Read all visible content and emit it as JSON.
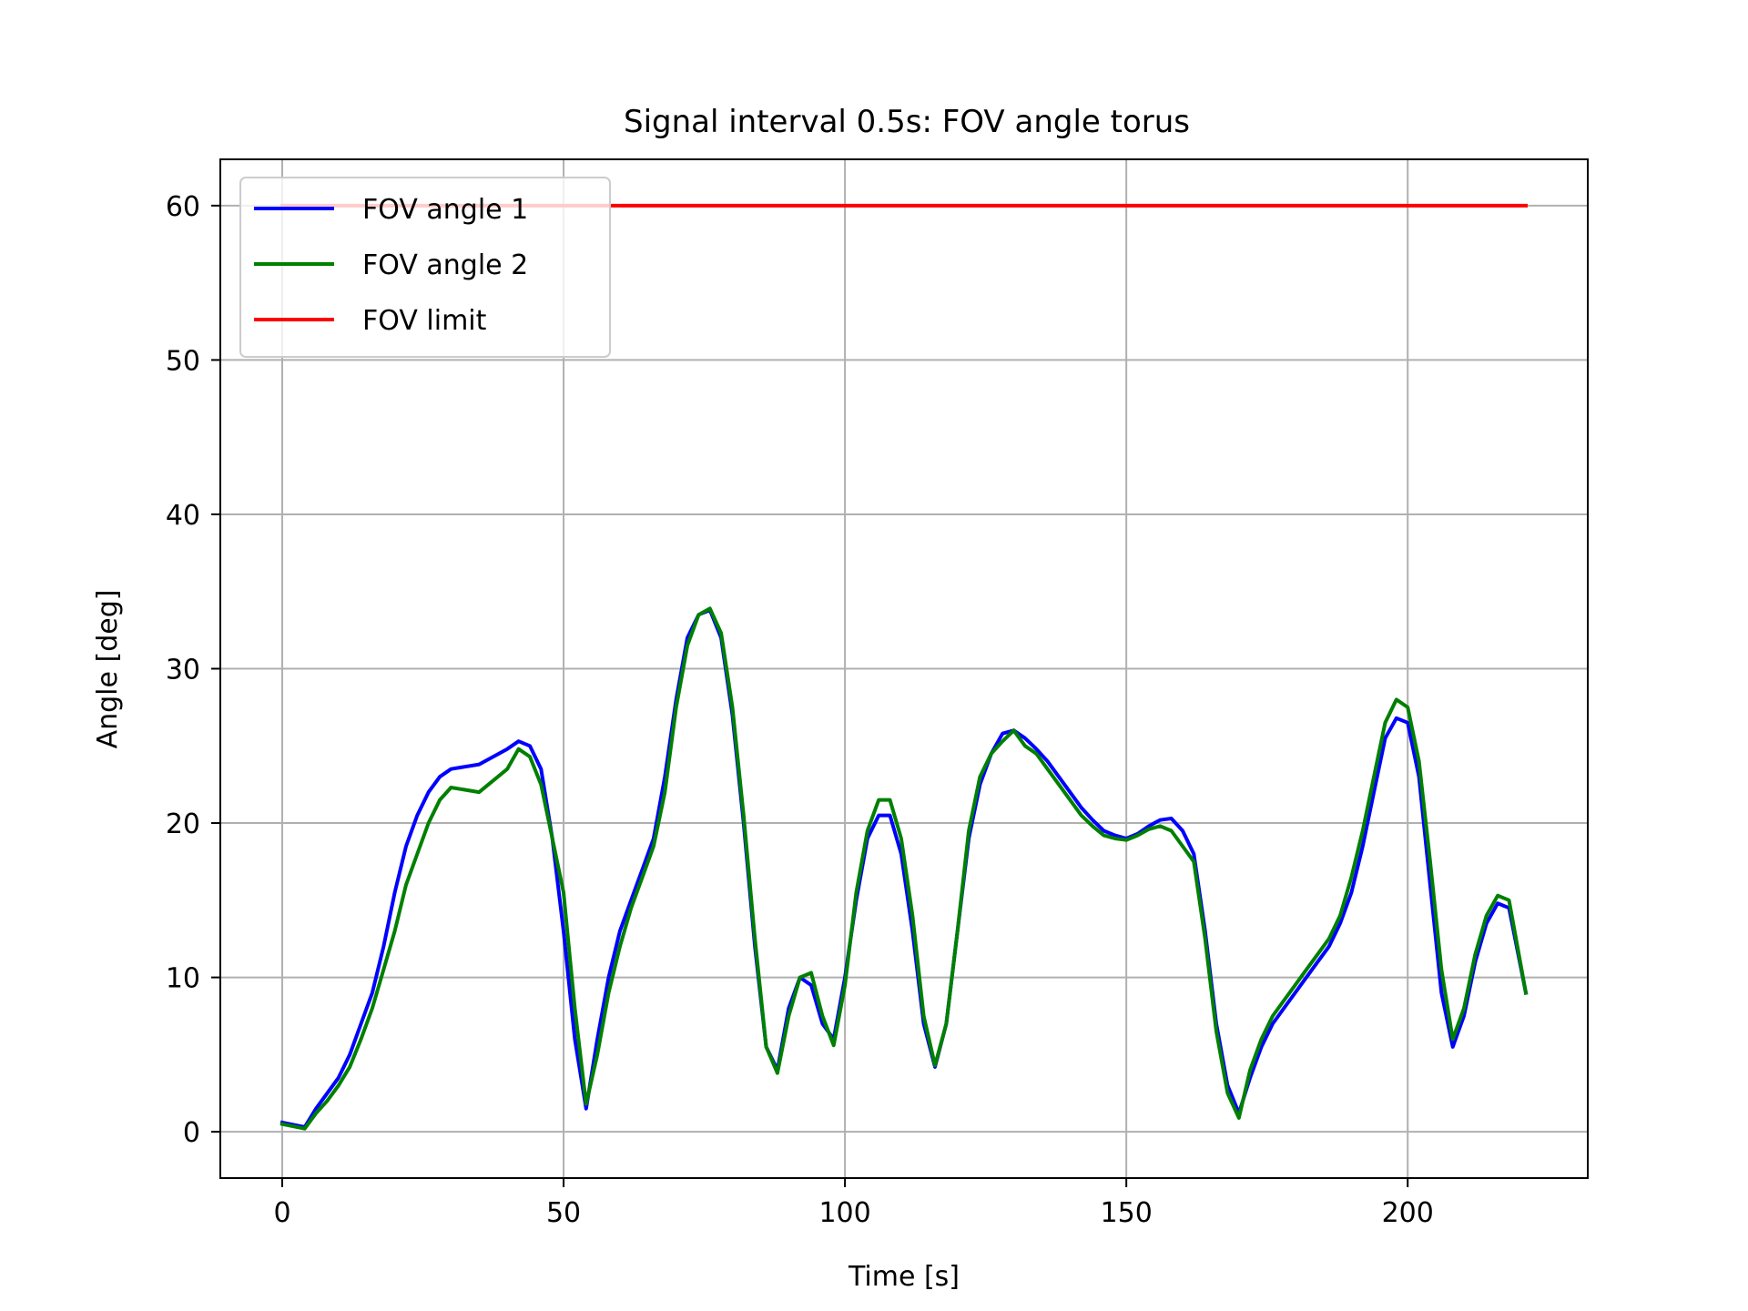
{
  "chart_data": {
    "type": "line",
    "title": "Signal interval 0.5s: FOV angle torus",
    "xlabel": "Time [s]",
    "ylabel": "Angle [deg]",
    "xlim": [
      -11,
      232
    ],
    "ylim": [
      -3,
      63
    ],
    "xticks": [
      0,
      50,
      100,
      150,
      200
    ],
    "yticks": [
      0,
      10,
      20,
      30,
      40,
      50,
      60
    ],
    "xtick_labels": [
      "0",
      "50",
      "100",
      "150",
      "200"
    ],
    "ytick_labels": [
      "0",
      "10",
      "20",
      "30",
      "40",
      "50",
      "60"
    ],
    "grid": true,
    "legend_position": "top-left",
    "series": [
      {
        "name": "FOV angle 1",
        "color": "#0000ff",
        "x": [
          0,
          4,
          6,
          8,
          10,
          12,
          14,
          16,
          18,
          20,
          22,
          24,
          26,
          28,
          30,
          35,
          40,
          42,
          44,
          46,
          48,
          50,
          52,
          54,
          56,
          58,
          60,
          62,
          64,
          66,
          68,
          70,
          72,
          74,
          76,
          78,
          80,
          82,
          84,
          86,
          88,
          90,
          92,
          94,
          96,
          98,
          100,
          102,
          104,
          106,
          108,
          110,
          112,
          114,
          116,
          118,
          120,
          122,
          124,
          126,
          128,
          130,
          132,
          134,
          136,
          138,
          140,
          142,
          144,
          146,
          148,
          150,
          152,
          154,
          156,
          158,
          160,
          162,
          164,
          166,
          168,
          170,
          172,
          174,
          176,
          178,
          180,
          182,
          184,
          186,
          188,
          190,
          192,
          194,
          196,
          198,
          200,
          202,
          204,
          206,
          208,
          210,
          212,
          214,
          216,
          218,
          221
        ],
        "values": [
          0.6,
          0.3,
          1.5,
          2.5,
          3.5,
          5.0,
          7.0,
          9.0,
          12.0,
          15.5,
          18.5,
          20.5,
          22.0,
          23.0,
          23.5,
          23.8,
          24.8,
          25.3,
          25.0,
          23.5,
          19.0,
          13.0,
          6.0,
          1.5,
          6.0,
          10.0,
          13.0,
          15.0,
          17.0,
          19.0,
          23.0,
          28.0,
          32.0,
          33.5,
          33.8,
          32.0,
          27.0,
          20.0,
          12.0,
          5.5,
          4.0,
          8.0,
          10.0,
          9.5,
          7.0,
          6.0,
          10.0,
          15.0,
          19.0,
          20.5,
          20.5,
          18.0,
          13.0,
          7.0,
          4.2,
          7.0,
          13.0,
          19.0,
          22.5,
          24.5,
          25.8,
          26.0,
          25.5,
          24.8,
          24.0,
          23.0,
          22.0,
          21.0,
          20.2,
          19.5,
          19.2,
          19.0,
          19.3,
          19.8,
          20.2,
          20.3,
          19.5,
          18.0,
          13.0,
          7.0,
          3.0,
          1.2,
          3.5,
          5.5,
          7.0,
          8.0,
          9.0,
          10.0,
          11.0,
          12.0,
          13.5,
          15.5,
          18.5,
          22.0,
          25.5,
          26.8,
          26.5,
          23.0,
          16.0,
          9.0,
          5.5,
          7.5,
          11.0,
          13.5,
          14.8,
          14.5,
          9.0
        ]
      },
      {
        "name": "FOV angle 2",
        "color": "#008000",
        "x": [
          0,
          4,
          6,
          8,
          10,
          12,
          14,
          16,
          18,
          20,
          22,
          24,
          26,
          28,
          30,
          35,
          40,
          42,
          44,
          46,
          48,
          50,
          52,
          54,
          56,
          58,
          60,
          62,
          64,
          66,
          68,
          70,
          72,
          74,
          76,
          78,
          80,
          82,
          84,
          86,
          88,
          90,
          92,
          94,
          96,
          98,
          100,
          102,
          104,
          106,
          108,
          110,
          112,
          114,
          116,
          118,
          120,
          122,
          124,
          126,
          128,
          130,
          132,
          134,
          136,
          138,
          140,
          142,
          144,
          146,
          148,
          150,
          152,
          154,
          156,
          158,
          160,
          162,
          164,
          166,
          168,
          170,
          172,
          174,
          176,
          178,
          180,
          182,
          184,
          186,
          188,
          190,
          192,
          194,
          196,
          198,
          200,
          202,
          204,
          206,
          208,
          210,
          212,
          214,
          216,
          218,
          221
        ],
        "values": [
          0.5,
          0.2,
          1.2,
          2.0,
          3.0,
          4.2,
          6.0,
          8.0,
          10.5,
          13.0,
          16.0,
          18.0,
          20.0,
          21.5,
          22.3,
          22.0,
          23.5,
          24.8,
          24.3,
          22.5,
          19.0,
          15.5,
          8.0,
          1.8,
          5.0,
          9.0,
          12.0,
          14.5,
          16.5,
          18.5,
          22.0,
          27.5,
          31.5,
          33.5,
          33.9,
          32.3,
          27.5,
          20.5,
          12.5,
          5.5,
          3.8,
          7.5,
          10.0,
          10.3,
          7.5,
          5.6,
          9.5,
          15.5,
          19.5,
          21.5,
          21.5,
          19.0,
          14.0,
          7.5,
          4.3,
          7.0,
          13.0,
          19.5,
          23.0,
          24.5,
          25.3,
          26.0,
          25.0,
          24.5,
          23.5,
          22.5,
          21.5,
          20.5,
          19.8,
          19.2,
          19.0,
          18.9,
          19.2,
          19.6,
          19.8,
          19.5,
          18.5,
          17.5,
          12.5,
          6.5,
          2.5,
          0.9,
          4.0,
          6.0,
          7.5,
          8.5,
          9.5,
          10.5,
          11.5,
          12.5,
          14.0,
          16.5,
          19.5,
          23.0,
          26.5,
          28.0,
          27.5,
          24.0,
          17.5,
          10.5,
          6.0,
          8.0,
          11.5,
          14.0,
          15.3,
          15.0,
          9.0
        ]
      },
      {
        "name": "FOV limit",
        "color": "#ff0000",
        "x": [
          0,
          221
        ],
        "values": [
          60,
          60
        ]
      }
    ]
  }
}
